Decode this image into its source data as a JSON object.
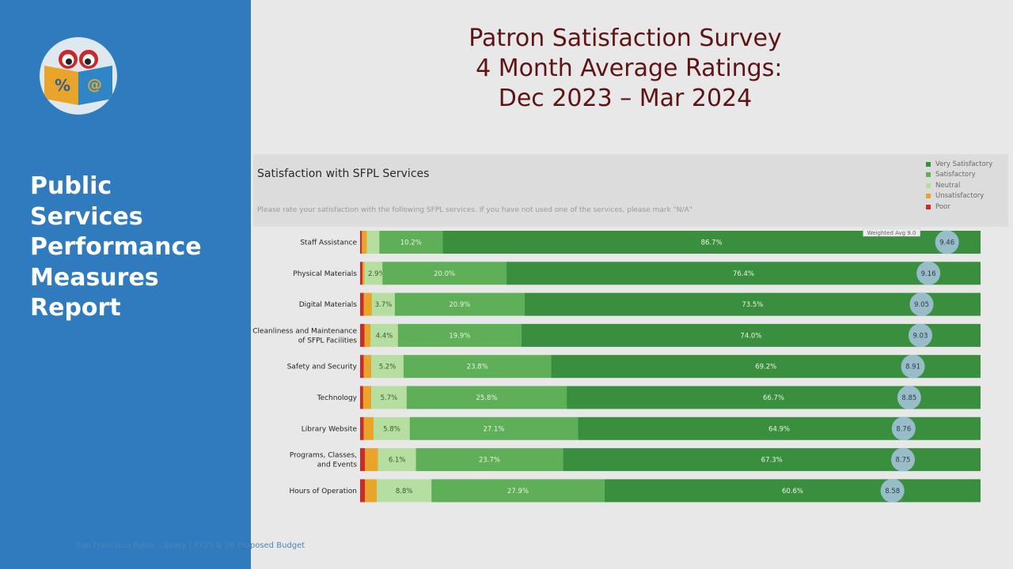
{
  "sidebar": {
    "title_lines": [
      "Public",
      "Services",
      "Performance",
      "Measures",
      "Report"
    ],
    "footer": "San Francisco Public Library | FY25 & 26 Proposed Budget"
  },
  "logo": {
    "symbols": [
      "%",
      "@"
    ]
  },
  "header": {
    "title_lines": [
      "Patron Satisfaction Survey",
      " 4 Month Average Ratings:",
      "Dec 2023 – Mar 2024"
    ]
  },
  "colors": {
    "very_satisfactory": "#3a8f3f",
    "satisfactory": "#5fae58",
    "neutral": "#b6dea0",
    "unsatisfactory": "#e9a52a",
    "poor": "#cc2b2b",
    "weighted_circle": "#a9c6e2",
    "sidebar": "#2f7bbd",
    "title": "#5e1414"
  },
  "chart_data": {
    "type": "bar",
    "orientation": "horizontal",
    "stacked": true,
    "title": "Satisfaction with SFPL Services",
    "subtitle": "Please rate your satisfaction with the following SFPL services. If you have not used one of the services, please mark \"N/A\"",
    "categories": [
      "Staff Assistance",
      "Physical Materials",
      "Digital Materials",
      "Cleanliness and Maintenance of SFPL Facilities",
      "Safety and Security",
      "Technology",
      "Library Website",
      "Programs, Classes, and Events",
      "Hours of Operation"
    ],
    "series": [
      {
        "name": "Poor",
        "values": [
          0.3,
          0.4,
          0.6,
          0.7,
          0.6,
          0.5,
          0.6,
          0.8,
          0.8
        ]
      },
      {
        "name": "Unsatisfactory",
        "values": [
          0.8,
          0.3,
          1.3,
          1.0,
          1.2,
          1.3,
          1.6,
          2.1,
          1.9
        ]
      },
      {
        "name": "Neutral",
        "values": [
          2.0,
          2.9,
          3.7,
          4.4,
          5.2,
          5.7,
          5.8,
          6.1,
          8.8
        ]
      },
      {
        "name": "Satisfactory",
        "values": [
          10.2,
          20.0,
          20.9,
          19.9,
          23.8,
          25.8,
          27.1,
          23.7,
          27.9
        ]
      },
      {
        "name": "Very Satisfactory",
        "values": [
          86.7,
          76.4,
          73.5,
          74.0,
          69.2,
          66.7,
          64.9,
          67.3,
          60.6
        ]
      }
    ],
    "labels": {
      "Neutral": [
        "",
        "2.9%",
        "3.7%",
        "4.4%",
        "5.2%",
        "5.7%",
        "5.8%",
        "6.1%",
        "8.8%"
      ],
      "Satisfactory": [
        "10.2%",
        "20.0%",
        "20.9%",
        "19.9%",
        "23.8%",
        "25.8%",
        "27.1%",
        "23.7%",
        "27.9%"
      ],
      "Very Satisfactory": [
        "86.7%",
        "76.4%",
        "73.5%",
        "74.0%",
        "69.2%",
        "66.7%",
        "64.9%",
        "67.3%",
        "60.6%"
      ]
    },
    "weighted_avg": {
      "label": "Weighted Avg 9.0",
      "values": [
        9.46,
        9.16,
        9.05,
        9.03,
        8.91,
        8.85,
        8.76,
        8.75,
        8.58
      ],
      "display": [
        "9.46",
        "9.16",
        "9.05",
        "9.03",
        "8.91",
        "8.85",
        "8.76",
        "8.75",
        "8.58"
      ],
      "scale_max": 10
    },
    "legend": [
      "Very Satisfactory",
      "Satisfactory",
      "Neutral",
      "Unsatisfactory",
      "Poor"
    ],
    "legend_position": "top-right",
    "xlim": [
      0,
      100
    ]
  }
}
